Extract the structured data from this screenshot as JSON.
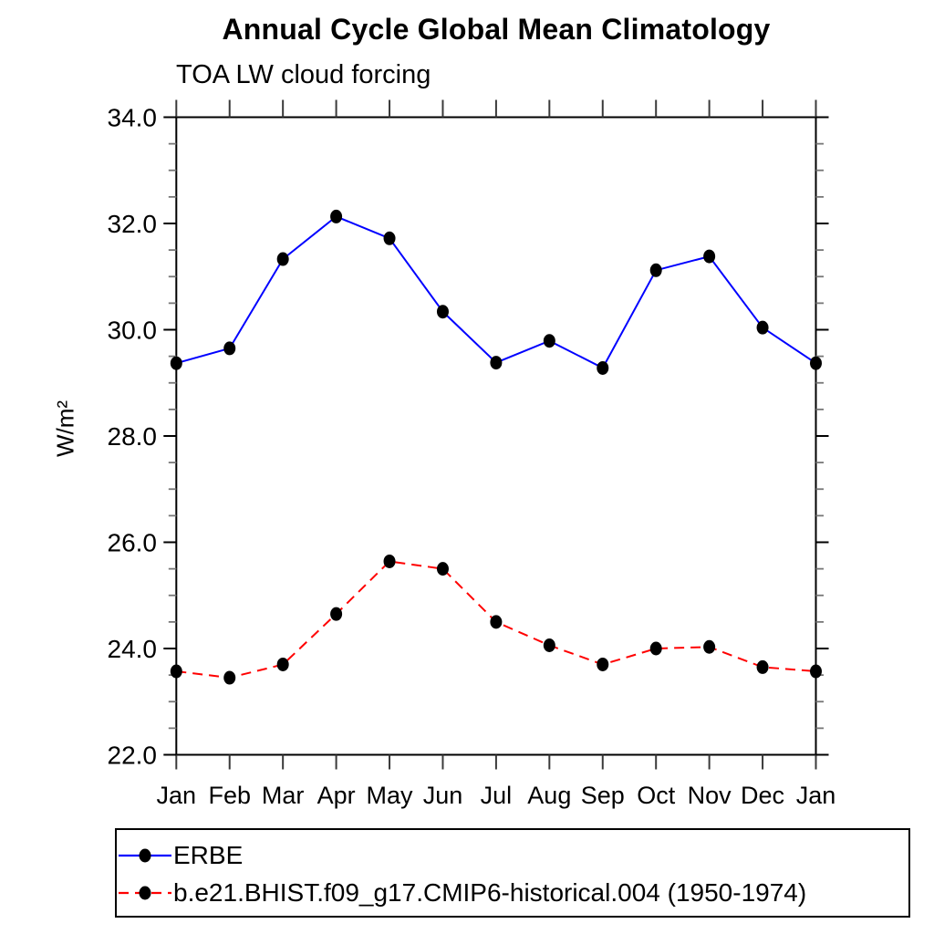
{
  "chart_data": {
    "type": "line",
    "title": "Annual Cycle Global Mean Climatology",
    "subtitle": "TOA LW cloud forcing",
    "ylabel": "W/m²",
    "xlabel": "",
    "x_labels": [
      "Jan",
      "Feb",
      "Mar",
      "Apr",
      "May",
      "Jun",
      "Jul",
      "Aug",
      "Sep",
      "Oct",
      "Nov",
      "Dec",
      "Jan"
    ],
    "ylim": [
      22.0,
      34.0
    ],
    "ytick_major_interval": 2.0,
    "ytick_minor_interval": 0.5,
    "ytick_labels": [
      "22.0",
      "24.0",
      "26.0",
      "28.0",
      "30.0",
      "32.0",
      "34.0"
    ],
    "grid": false,
    "frame_color": "#000000",
    "marker_color": "#000000",
    "legend_position": "bottom-left-boxed",
    "series": [
      {
        "name": "ERBE",
        "color": "#0000ff",
        "line_style": "solid",
        "marker": "filled-circle",
        "values": [
          29.37,
          29.65,
          31.33,
          32.13,
          31.72,
          30.34,
          29.38,
          29.79,
          29.28,
          31.12,
          31.38,
          30.04,
          29.37
        ]
      },
      {
        "name": "b.e21.BHIST.f09_g17.CMIP6-historical.004 (1950-1974)",
        "color": "#ff0000",
        "line_style": "dashed",
        "marker": "filled-circle",
        "values": [
          23.57,
          23.45,
          23.7,
          24.65,
          25.64,
          25.5,
          24.5,
          24.06,
          23.7,
          24.0,
          24.03,
          23.65,
          23.57
        ]
      }
    ]
  }
}
